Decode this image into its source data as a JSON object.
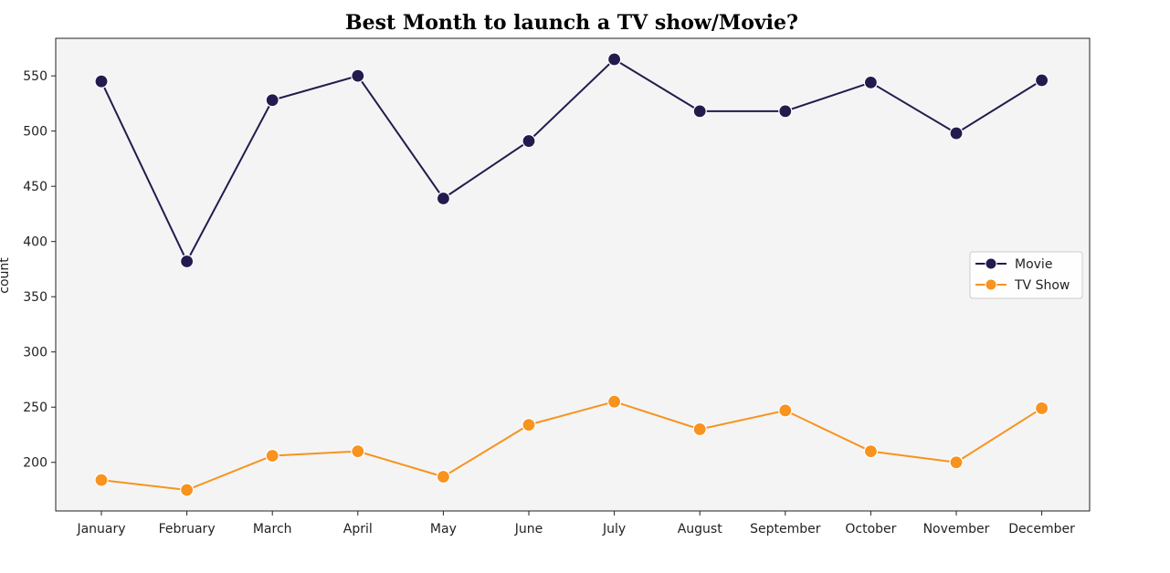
{
  "chart_data": {
    "type": "line",
    "title": "Best Month to launch a TV show/Movie?",
    "xlabel": "",
    "ylabel": "count",
    "categories": [
      "January",
      "February",
      "March",
      "April",
      "May",
      "June",
      "July",
      "August",
      "September",
      "October",
      "November",
      "December"
    ],
    "series": [
      {
        "name": "Movie",
        "color": "#221c4e",
        "values": [
          545,
          382,
          528,
          550,
          439,
          491,
          565,
          518,
          518,
          544,
          498,
          546
        ]
      },
      {
        "name": "TV Show",
        "color": "#f7931e",
        "values": [
          184,
          175,
          206,
          210,
          187,
          234,
          255,
          230,
          247,
          210,
          200,
          249
        ]
      }
    ],
    "ylim": [
      156,
      584
    ],
    "yticks": [
      200,
      250,
      300,
      350,
      400,
      450,
      500,
      550
    ],
    "grid": false,
    "legend_position": "center-right",
    "plot_background": "#f4f4f4",
    "marker": "circle"
  }
}
